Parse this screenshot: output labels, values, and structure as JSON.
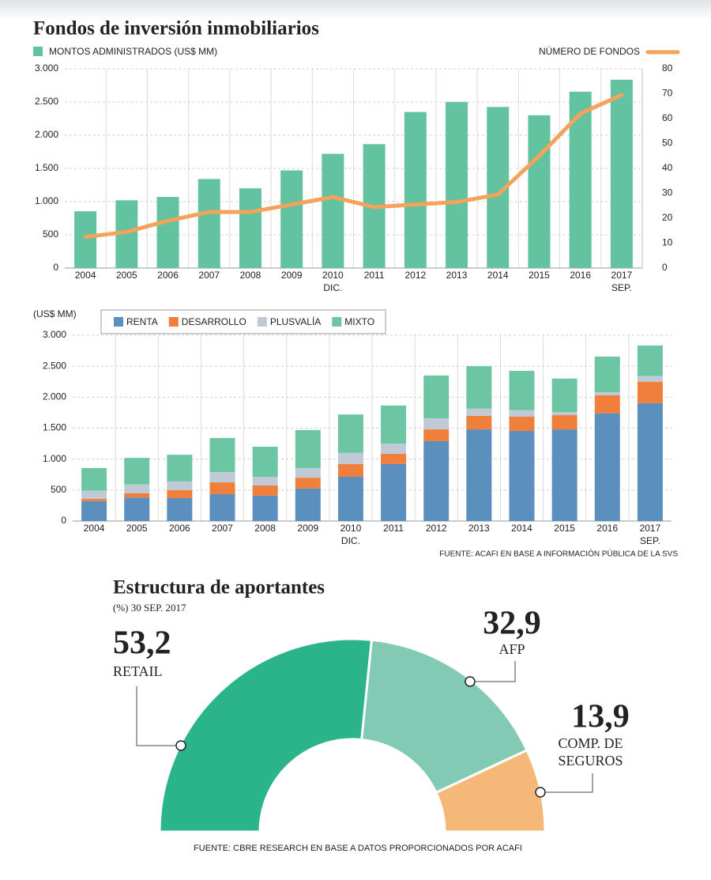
{
  "chart_data": [
    {
      "type": "combo",
      "title": "Fondos de inversión inmobiliarios",
      "categories": [
        "2004",
        "2005",
        "2006",
        "2007",
        "2008",
        "2009",
        "2010",
        "2011",
        "2012",
        "2013",
        "2014",
        "2015",
        "2016",
        "2017"
      ],
      "category_notes": [
        null,
        null,
        null,
        null,
        null,
        null,
        "DIC.",
        null,
        null,
        null,
        null,
        null,
        null,
        "SEP."
      ],
      "series": [
        {
          "name": "MONTOS ADMINISTRADOS (US$ MM)",
          "type": "bar",
          "color": "#63c29f",
          "values": [
            855,
            1020,
            1070,
            1340,
            1200,
            1470,
            1720,
            1865,
            2350,
            2500,
            2425,
            2300,
            2655,
            2835
          ]
        },
        {
          "name": "NÚMERO DE FONDOS",
          "type": "line",
          "axis": "y2",
          "color": "#f5a35c",
          "values": [
            12.5,
            14.5,
            19,
            22.5,
            22.5,
            25.5,
            28.5,
            24.5,
            25.5,
            26.5,
            29.5,
            45,
            62,
            69.5
          ]
        }
      ],
      "ylim": [
        0,
        3000
      ],
      "yticks": [
        0,
        500,
        {
          "value": 1000,
          "label": "1.000"
        },
        {
          "value": 1500,
          "label": "1.500"
        },
        {
          "value": 2000,
          "label": "2.000"
        },
        {
          "value": 2500,
          "label": "2.500"
        },
        {
          "value": 3000,
          "label": "3.000"
        }
      ],
      "y2lim": [
        0,
        80
      ],
      "y2ticks": [
        0,
        10,
        20,
        30,
        40,
        50,
        60,
        70,
        80
      ],
      "grid": true
    },
    {
      "type": "bar",
      "stacked": true,
      "ylabel": "(US$ MM)",
      "categories": [
        "2004",
        "2005",
        "2006",
        "2007",
        "2008",
        "2009",
        "2010",
        "2011",
        "2012",
        "2013",
        "2014",
        "2015",
        "2016",
        "2017"
      ],
      "category_notes": [
        null,
        null,
        null,
        null,
        null,
        null,
        "DIC.",
        null,
        null,
        null,
        null,
        null,
        null,
        "SEP."
      ],
      "series": [
        {
          "name": "RENTA",
          "color": "#5b8fbd",
          "values": [
            320,
            380,
            370,
            435,
            410,
            525,
            715,
            920,
            1290,
            1480,
            1455,
            1480,
            1740,
            1905
          ]
        },
        {
          "name": "DESARROLLO",
          "color": "#f07f3c",
          "values": [
            40,
            70,
            130,
            190,
            165,
            175,
            205,
            165,
            190,
            220,
            230,
            230,
            290,
            345
          ]
        },
        {
          "name": "PLUSVALÍA",
          "color": "#bfcad6",
          "values": [
            130,
            140,
            140,
            165,
            140,
            155,
            180,
            165,
            180,
            115,
            105,
            50,
            50,
            90
          ]
        },
        {
          "name": "MIXTO",
          "color": "#6cc6a3",
          "values": [
            365,
            430,
            430,
            550,
            485,
            615,
            620,
            615,
            690,
            685,
            635,
            540,
            575,
            495
          ]
        }
      ],
      "ylim": [
        0,
        3000
      ],
      "yticks": [
        0,
        500,
        {
          "value": 1000,
          "label": "1.000"
        },
        {
          "value": 1500,
          "label": "1.500"
        },
        {
          "value": 2000,
          "label": "2.000"
        },
        {
          "value": 2500,
          "label": "2.500"
        },
        {
          "value": 3000,
          "label": "3.000"
        }
      ],
      "grid": true,
      "source": "FUENTE: ACAFI EN BASE A INFORMACIÓN PÚBLICA DE LA SVS"
    },
    {
      "type": "pie",
      "half": true,
      "title": "Estructura de aportantes",
      "subtitle": "(%) 30 SEP. 2017",
      "categories": [
        "RETAIL",
        "AFP",
        "COMP. DE SEGUROS"
      ],
      "values": [
        53.2,
        32.9,
        13.9
      ],
      "value_labels": [
        "53,2",
        "32,9",
        "13,9"
      ],
      "colors": [
        "#2bb38a",
        "#82cab3",
        "#f6b878"
      ],
      "source": "FUENTE: CBRE RESEARCH EN BASE A DATOS PROPORCIONADOS POR ACAFI"
    }
  ]
}
